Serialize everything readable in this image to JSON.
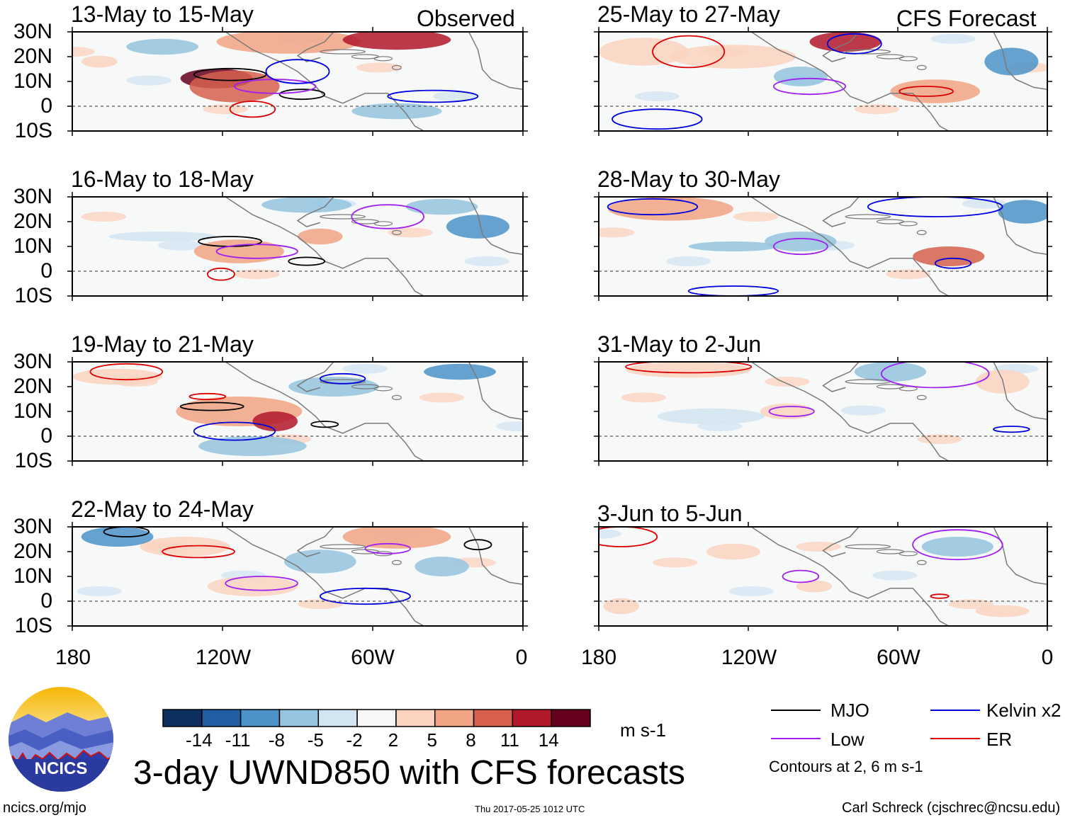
{
  "panels": {
    "left": [
      {
        "title": "13-May to 15-May",
        "tag": "Observed"
      },
      {
        "title": "16-May to 18-May",
        "tag": ""
      },
      {
        "title": "19-May to 21-May",
        "tag": ""
      },
      {
        "title": "22-May to 24-May",
        "tag": ""
      }
    ],
    "right": [
      {
        "title": "25-May to 27-May",
        "tag": "CFS Forecast"
      },
      {
        "title": "28-May to 30-May",
        "tag": ""
      },
      {
        "title": "31-May to 2-Jun",
        "tag": ""
      },
      {
        "title": "3-Jun to 5-Jun",
        "tag": ""
      }
    ]
  },
  "lat_labels": [
    "30N",
    "20N",
    "10N",
    "0",
    "10S"
  ],
  "lon_labels": [
    "180",
    "120W",
    "60W",
    "0"
  ],
  "colorbar": {
    "ticks": [
      "-14",
      "-11",
      "-8",
      "-5",
      "-2",
      "2",
      "5",
      "8",
      "11",
      "14"
    ],
    "units": "m s-1",
    "colors": [
      "#0b2f5e",
      "#1f5fa2",
      "#4b93c8",
      "#94c4df",
      "#d2e5f1",
      "#f7f7f7",
      "#fbd3c0",
      "#f1a584",
      "#d6604d",
      "#b2182b",
      "#67001f"
    ]
  },
  "legend": {
    "items": [
      {
        "label": "MJO",
        "color": "#000000"
      },
      {
        "label": "Kelvin x2",
        "color": "#0000dd"
      },
      {
        "label": "Low",
        "color": "#a020f0"
      },
      {
        "label": "ER",
        "color": "#dd0000"
      }
    ],
    "note": "Contours at 2, 6 m s-1"
  },
  "main_title": "3-day UWND850 with CFS forecasts",
  "logo_text": "NCICS",
  "footer": {
    "left": "ncics.org/mjo",
    "center": "Thu 2017-05-25 1012 UTC",
    "right": "Carl Schreck (cjschrec@ncsu.edu)"
  }
}
